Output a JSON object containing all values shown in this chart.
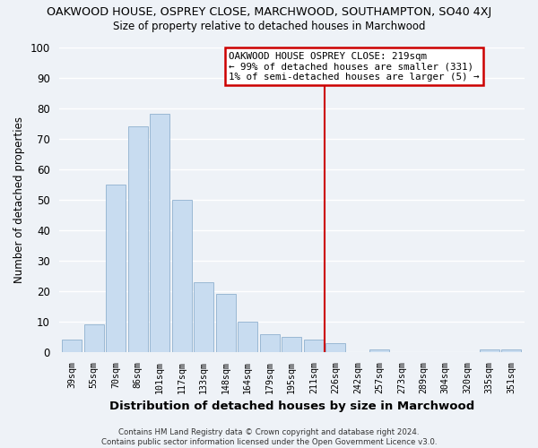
{
  "title_main": "OAKWOOD HOUSE, OSPREY CLOSE, MARCHWOOD, SOUTHAMPTON, SO40 4XJ",
  "title_sub": "Size of property relative to detached houses in Marchwood",
  "xlabel": "Distribution of detached houses by size in Marchwood",
  "ylabel": "Number of detached properties",
  "bar_labels": [
    "39sqm",
    "55sqm",
    "70sqm",
    "86sqm",
    "101sqm",
    "117sqm",
    "133sqm",
    "148sqm",
    "164sqm",
    "179sqm",
    "195sqm",
    "211sqm",
    "226sqm",
    "242sqm",
    "257sqm",
    "273sqm",
    "289sqm",
    "304sqm",
    "320sqm",
    "335sqm",
    "351sqm"
  ],
  "bar_values": [
    4,
    9,
    55,
    74,
    78,
    50,
    23,
    19,
    10,
    6,
    5,
    4,
    3,
    0,
    1,
    0,
    0,
    0,
    0,
    1,
    1
  ],
  "bar_color": "#c8dcf0",
  "bar_edge_color": "#9ab8d4",
  "vline_x_idx": 12,
  "vline_color": "#cc0000",
  "annotation_text": "OAKWOOD HOUSE OSPREY CLOSE: 219sqm\n← 99% of detached houses are smaller (331)\n1% of semi-detached houses are larger (5) →",
  "ylim": [
    0,
    100
  ],
  "footer": "Contains HM Land Registry data © Crown copyright and database right 2024.\nContains public sector information licensed under the Open Government Licence v3.0.",
  "bg_color": "#eef2f7",
  "grid_color": "#ffffff"
}
